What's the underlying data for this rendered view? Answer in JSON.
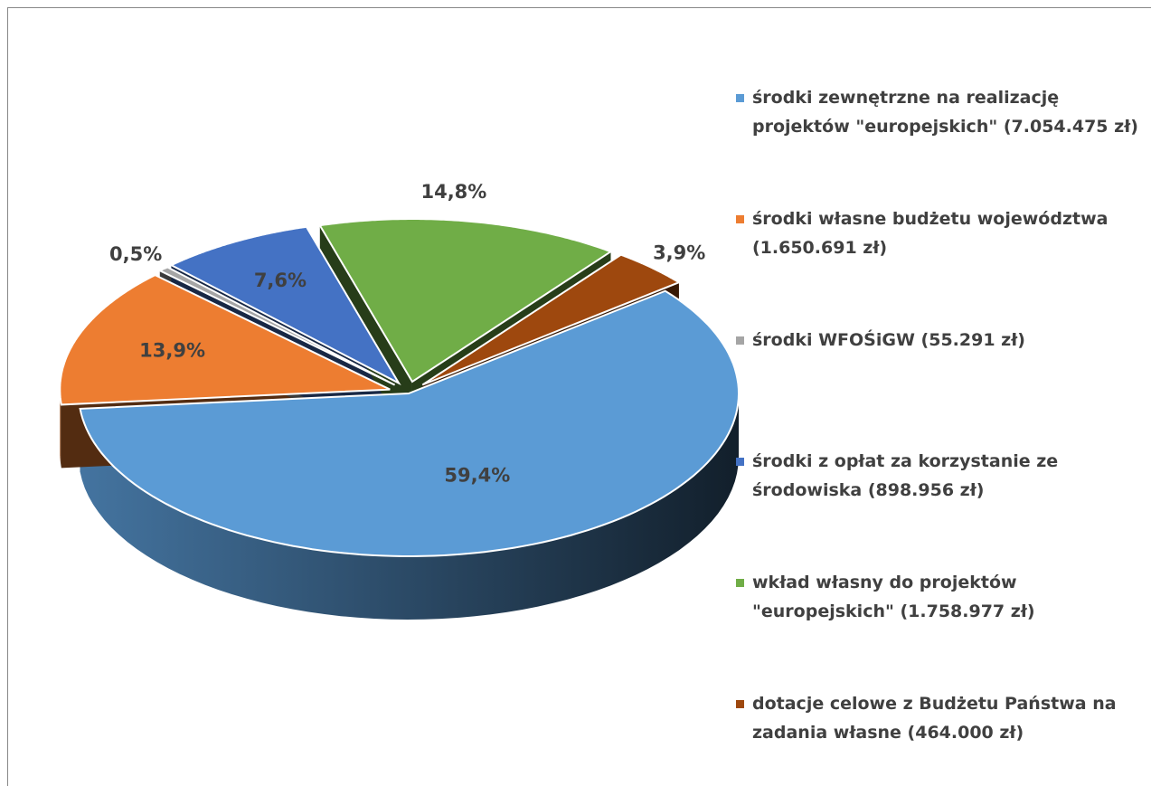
{
  "chart_data": {
    "type": "pie",
    "categories": [
      "środki zewnętrzne na realizację projektów \"europejskich\" (7.054.475 zł)",
      "środki własne budżetu województwa (1.650.691 zł)",
      "środki WFOŚiGW (55.291 zł)",
      "środki z opłat za korzystanie ze środowiska (898.956 zł)",
      "wkład własny do projektów \"europejskich\" (1.758.977 zł)",
      "dotacje celowe z Budżetu Państwa na zadania własne (464.000 zł)"
    ],
    "values": [
      59.4,
      13.9,
      0.5,
      7.6,
      14.8,
      3.9
    ],
    "value_labels": [
      "59,4%",
      "13,9%",
      "0,5%",
      "7,6%",
      "14,8%",
      "3,9%"
    ],
    "colors": [
      "#5b9bd5",
      "#ed7d31",
      "#a5a5a5",
      "#4472c4",
      "#70ad47",
      "#9e480e"
    ],
    "legend": "right"
  }
}
